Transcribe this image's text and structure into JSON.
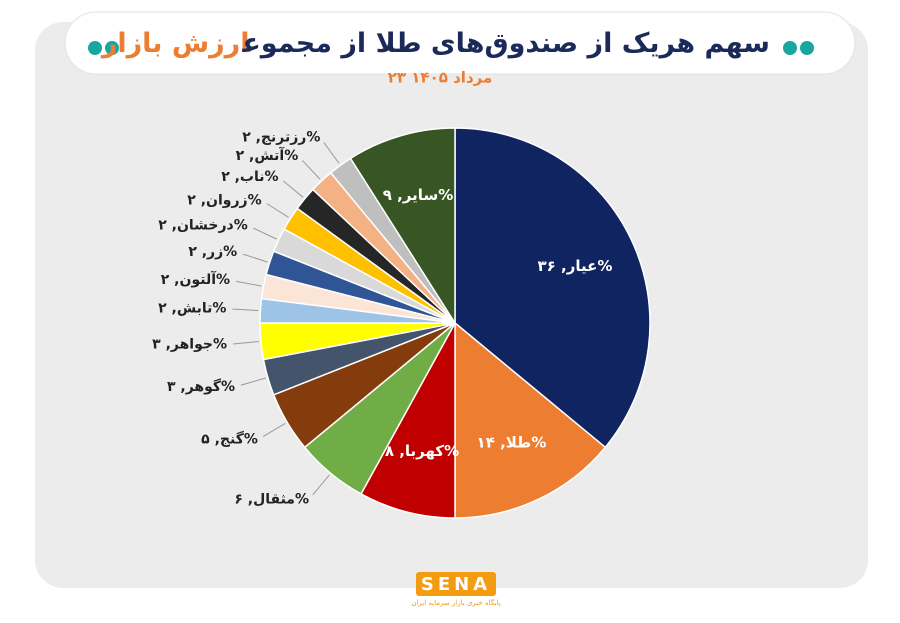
{
  "chart_data": {
    "type": "pie",
    "title": "سهم هریک از صندوق‌های طلا از مجموع",
    "title_highlight": "ارزش بازار",
    "subtitle": "۲۳ مرداد ۱۴۰۵",
    "values": [
      36,
      14,
      8,
      6,
      5,
      3,
      3,
      2,
      2,
      2,
      2,
      2,
      2,
      2,
      2,
      9
    ],
    "value_labels": [
      "عیار, ۳۶%",
      "طلا, ۱۴%",
      "کهربا, ۸%",
      "مثقال, ۶%",
      "گنج, ۵%",
      "گوهر, ۳%",
      "جواهر, ۳%",
      "تابش, ۲%",
      "آلتون, ۲%",
      "زر, ۲%",
      "درخشان, ۲%",
      "زروان, ۲%",
      "ناب, ۲%",
      "آتش, ۲%",
      "رزترنج, ۲%",
      "سایر, ۹%"
    ],
    "colors": [
      "#0f2460",
      "#ed7d31",
      "#c00000",
      "#70ad47",
      "#843c0c",
      "#44546a",
      "#ffff00",
      "#9dc3e6",
      "#fbe5d6",
      "#2f5597",
      "#d9d9d9",
      "#ffc000",
      "#262626",
      "#f4b183",
      "#bfbfbf",
      "#375623"
    ]
  },
  "logo": {
    "name": "SENA",
    "tagline": "پایگاه خبری بازار سرمایه ایران"
  }
}
